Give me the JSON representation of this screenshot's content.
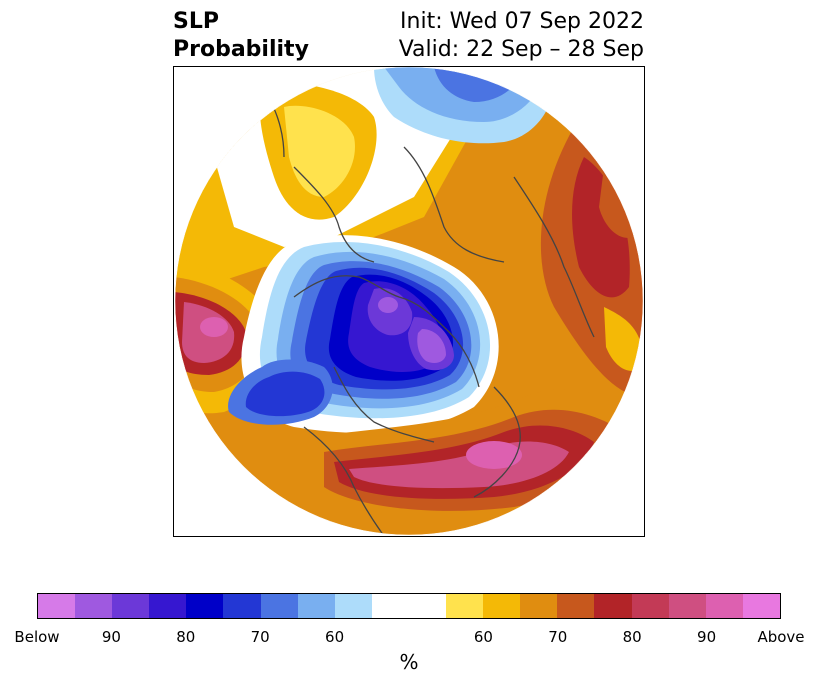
{
  "title": {
    "left_line1": "SLP",
    "left_line2": "Probability",
    "right_line1": "Init: Wed 07 Sep 2022",
    "right_line2": "Valid: 22 Sep – 28 Sep"
  },
  "colorbar": {
    "unit": "%",
    "colors": [
      "#d67ae8",
      "#9f59e0",
      "#6c38d8",
      "#3617d0",
      "#0000c8",
      "#2337d4",
      "#4b74e2",
      "#79aff0",
      "#addcfa",
      "#ffffff",
      "#ffffff",
      "#ffe24d",
      "#f4b906",
      "#e08d10",
      "#c7581d",
      "#b22428",
      "#c33a56",
      "#cf4f81",
      "#dd60b0",
      "#e878e0"
    ],
    "tick_labels": [
      "Below",
      "90",
      "80",
      "70",
      "60",
      "60",
      "70",
      "80",
      "90",
      "Above"
    ]
  },
  "map": {
    "region": "Northern Hemisphere polar view",
    "colors": {
      "above_strong": "#cf4f81",
      "above_80": "#b22428",
      "above_75": "#c7581d",
      "above_70": "#e08d10",
      "above_60": "#f4b906",
      "above_55": "#ffe24d",
      "below_55": "#addcfa",
      "below_60": "#79aff0",
      "below_65": "#4b74e2",
      "below_70": "#2337d4",
      "below_75": "#0000c8",
      "below_85": "#3617d0",
      "below_90": "#6c38d8",
      "below_95": "#9f59e0",
      "border": "#444444"
    }
  }
}
